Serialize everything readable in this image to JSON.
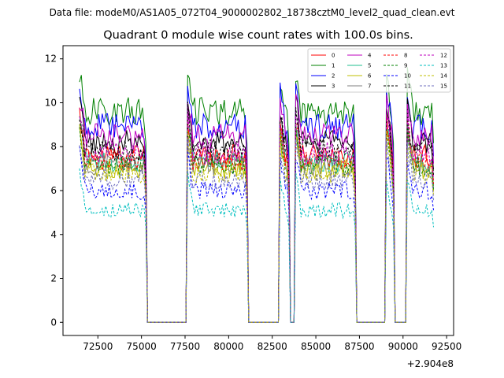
{
  "suptitle": "Data file: modeM0/AS1A05_072T04_9000002802_18738cztM0_level2_quad_clean.evt",
  "chart_data": {
    "type": "line",
    "title": "Quadrant 0 module wise count rates with 100.0s bins.",
    "xlabel": "",
    "ylabel": "",
    "x_offset_label": "+2.904e8",
    "xlim": [
      70500,
      92900
    ],
    "ylim": [
      -0.6,
      12.6
    ],
    "xticks": [
      72500,
      75000,
      77500,
      80000,
      82500,
      85000,
      87500,
      90000,
      92500
    ],
    "xtick_labels": [
      "72500",
      "75000",
      "77500",
      "80000",
      "82500",
      "85000",
      "87500",
      "90000",
      "92500"
    ],
    "yticks": [
      0,
      2,
      4,
      6,
      8,
      10,
      12
    ],
    "ytick_labels": [
      "0",
      "2",
      "4",
      "6",
      "8",
      "10",
      "12"
    ],
    "legend_position": "upper-right",
    "legend_columns": 4,
    "gaps": [
      [
        75300,
        77600
      ],
      [
        81100,
        82900
      ],
      [
        83500,
        83850
      ],
      [
        87300,
        89000
      ],
      [
        89500,
        90200
      ]
    ],
    "segments": [
      [
        71450,
        75300
      ],
      [
        77600,
        81100
      ],
      [
        82900,
        83500
      ],
      [
        83850,
        87300
      ],
      [
        89000,
        89500
      ],
      [
        90200,
        91800
      ]
    ],
    "series": [
      {
        "name": "0",
        "color": "#ff0000",
        "dash": "solid",
        "level": 7.6
      },
      {
        "name": "1",
        "color": "#008000",
        "dash": "solid",
        "level": 9.6
      },
      {
        "name": "2",
        "color": "#0000ff",
        "dash": "solid",
        "level": 8.9
      },
      {
        "name": "3",
        "color": "#000000",
        "dash": "solid",
        "level": 8.2
      },
      {
        "name": "4",
        "color": "#bf00bf",
        "dash": "solid",
        "level": 8.5
      },
      {
        "name": "5",
        "color": "#1fbf8f",
        "dash": "solid",
        "level": 7.3
      },
      {
        "name": "6",
        "color": "#bfbf00",
        "dash": "solid",
        "level": 7.0
      },
      {
        "name": "7",
        "color": "#7f7f7f",
        "dash": "solid",
        "level": 7.2
      },
      {
        "name": "8",
        "color": "#ff0000",
        "dash": "dashed",
        "level": 7.4
      },
      {
        "name": "9",
        "color": "#008000",
        "dash": "dashed",
        "level": 7.1
      },
      {
        "name": "10",
        "color": "#0000ff",
        "dash": "dashed",
        "level": 6.0
      },
      {
        "name": "11",
        "color": "#000000",
        "dash": "dashed",
        "level": 7.9
      },
      {
        "name": "12",
        "color": "#bf00bf",
        "dash": "dashed",
        "level": 7.7
      },
      {
        "name": "13",
        "color": "#00bfbf",
        "dash": "dashed",
        "level": 5.1
      },
      {
        "name": "14",
        "color": "#bfbf00",
        "dash": "dashed",
        "level": 6.8
      },
      {
        "name": "15",
        "color": "#6f6fbf",
        "dash": "dashed",
        "level": 6.5
      }
    ]
  }
}
